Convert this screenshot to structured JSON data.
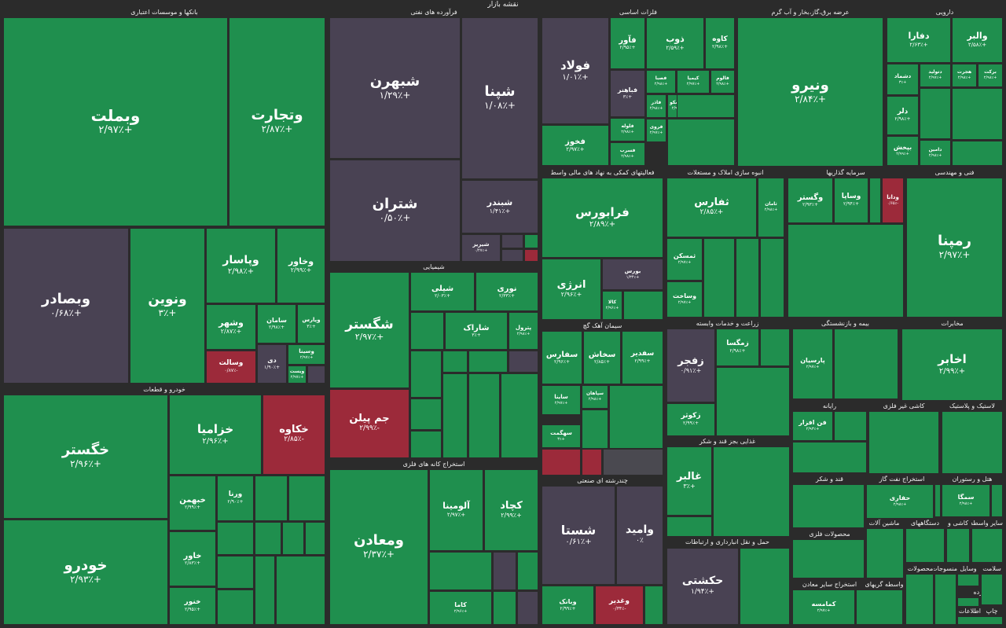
{
  "header_title": "نقشه بازار",
  "colors": {
    "up": "#1f8f4e",
    "neutral": "#494253",
    "down": "#9c2a3a",
    "gray": "#4a4950",
    "bg": "#2b2b2b"
  },
  "sectors": [
    "بانکها و موسسات اعتباری",
    "فرآورده های نفتی",
    "فلزات اساسی",
    "عرضه برق،گاز،بخار و آب گرم",
    "دارویی",
    "شیمیایی",
    "خودرو و قطعات",
    "فعالیتهای کمکی به نهاد های مالی واسط",
    "انبوه سازی املاک و مستغلات",
    "سرمایه گذاریها",
    "فنی و مهندسی",
    "سیمان آهک گچ",
    "زراعت و خدمات وابسته",
    "بیمه و بازنشستگی",
    "مخابرات",
    "رایانه",
    "کاشی غیر فلزی",
    "لاستیک و پلاستیک",
    "استخراج کانه های فلزی",
    "غذایی بجز قند و شکر",
    "چندرشته ای صنعتی",
    "قند و شکر",
    "استخراج نفت گاز",
    "هتل و رستوران",
    "حمل و نقل انبارداری و ارتباطات",
    "محصولات فلزی",
    "ماشین آلات",
    "دستگاههای",
    "کاشی و",
    "سایر واسطه",
    "استخراج سایر معادن",
    "واسطه گریهای",
    "محصولات",
    "منسوجات",
    "وسایل",
    "سلامت",
    "خرده",
    "چاپ",
    "اطلاعات و"
  ],
  "tiles": [
    {
      "symbol": "وبملت",
      "change": "+۲/۹۷٪",
      "status": "up"
    },
    {
      "symbol": "وتجارت",
      "change": "+۲/۸۷٪",
      "status": "up"
    },
    {
      "symbol": "وبصادر",
      "change": "+۰/۶۸٪",
      "status": "neutral"
    },
    {
      "symbol": "ونوین",
      "change": "+۳٪",
      "status": "up"
    },
    {
      "symbol": "وپاسار",
      "change": "+۲/۹۸٪",
      "status": "up"
    },
    {
      "symbol": "وخاور",
      "change": "+۲/۹۹٪",
      "status": "up"
    },
    {
      "symbol": "وشهر",
      "change": "+۲/۸۷٪",
      "status": "up"
    },
    {
      "symbol": "سامان",
      "change": "+۲/۹۸٪",
      "status": "up"
    },
    {
      "symbol": "وپارس",
      "change": "+۳٪",
      "status": "up"
    },
    {
      "symbol": "وسالت",
      "change": "-۰/۸۷٪",
      "status": "down"
    },
    {
      "symbol": "دی",
      "change": "+۱/۹۰٪",
      "status": "neutral"
    },
    {
      "symbol": "وسینا",
      "change": "+۲/۹۷٪",
      "status": "up"
    },
    {
      "symbol": "ویست",
      "change": "+۲/۹۷٪",
      "status": "up"
    },
    {
      "symbol": "شبهرن",
      "change": "+۱/۲۹٪",
      "status": "neutral"
    },
    {
      "symbol": "شپنا",
      "change": "+۱/۰۸٪",
      "status": "neutral"
    },
    {
      "symbol": "شتران",
      "change": "+۰/۵۰٪",
      "status": "neutral"
    },
    {
      "symbol": "شبندر",
      "change": "+۱/۴۱٪",
      "status": "neutral"
    },
    {
      "symbol": "شیریز",
      "change": "+۰/۴۷٪",
      "status": "neutral"
    },
    {
      "symbol": "فولاد",
      "change": "+۱/۰۱٪",
      "status": "neutral"
    },
    {
      "symbol": "فخوز",
      "change": "+۲/۹۷٪",
      "status": "up"
    },
    {
      "symbol": "فآور",
      "change": "+۲/۹۵٪",
      "status": "up"
    },
    {
      "symbol": "ذوب",
      "change": "+۲/۵۹٪",
      "status": "up"
    },
    {
      "symbol": "کاوه",
      "change": "+۲/۹۸٪",
      "status": "up"
    },
    {
      "symbol": "فباهنر",
      "change": "+۳٪",
      "status": "neutral"
    },
    {
      "symbol": "فصبا",
      "change": "+۲/۹۸٪",
      "status": "up"
    },
    {
      "symbol": "کیمیا",
      "change": "+۲/۹۷٪",
      "status": "up"
    },
    {
      "symbol": "فالوم",
      "change": "+۲/۹۸٪",
      "status": "up"
    },
    {
      "symbol": "فاذر",
      "change": "+۲/۹۸٪",
      "status": "up"
    },
    {
      "symbol": "سیسکو",
      "change": "+۲/۹۷٪",
      "status": "up"
    },
    {
      "symbol": "فلوله",
      "change": "+۲/۹۸٪",
      "status": "up"
    },
    {
      "symbol": "فروی",
      "change": "+۲/۹۷٪",
      "status": "up"
    },
    {
      "symbol": "فسرب",
      "change": "+۲/۹۸٪",
      "status": "up"
    },
    {
      "symbol": "ونیرو",
      "change": "+۲/۸۴٪",
      "status": "up"
    },
    {
      "symbol": "دفارا",
      "change": "+۲/۶۳٪",
      "status": "up"
    },
    {
      "symbol": "والبر",
      "change": "+۲/۵۸٪",
      "status": "up"
    },
    {
      "symbol": "دتولید",
      "change": "+۲/۹۷٪",
      "status": "up"
    },
    {
      "symbol": "برکت",
      "change": "+۲/۹۸٪",
      "status": "up"
    },
    {
      "symbol": "دشماد",
      "change": "+۳٪",
      "status": "up"
    },
    {
      "symbol": "هجرت",
      "change": "+۲/۹۸٪",
      "status": "up"
    },
    {
      "symbol": "دلر",
      "change": "+۲/۹۸٪",
      "status": "up"
    },
    {
      "symbol": "بپخش",
      "change": "+۲/۹۹٪",
      "status": "up"
    },
    {
      "symbol": "دامین",
      "change": "+۲/۹۸٪",
      "status": "up"
    },
    {
      "symbol": "فرابورس",
      "change": "+۲/۸۹٪",
      "status": "up"
    },
    {
      "symbol": "انرژی",
      "change": "+۲/۹۶٪",
      "status": "up"
    },
    {
      "symbol": "بورس",
      "change": "+۱/۳۴٪",
      "status": "neutral"
    },
    {
      "symbol": "کالا",
      "change": "+۲/۹۶٪",
      "status": "up"
    },
    {
      "symbol": "ثفارس",
      "change": "+۲/۸۵٪",
      "status": "up"
    },
    {
      "symbol": "ثامان",
      "change": "+۲/۹۸٪",
      "status": "up"
    },
    {
      "symbol": "ثمسکن",
      "change": "+۲/۹۷٪",
      "status": "up"
    },
    {
      "symbol": "وساخت",
      "change": "+۲/۹۷٪",
      "status": "up"
    },
    {
      "symbol": "وگستر",
      "change": "+۲/۹۳٪",
      "status": "up"
    },
    {
      "symbol": "وساپا",
      "change": "+۲/۹۴٪",
      "status": "up"
    },
    {
      "symbol": "ودانا",
      "change": "-۰/۶۵٪",
      "status": "down"
    },
    {
      "symbol": "رمپنا",
      "change": "+۲/۹۷٪",
      "status": "up"
    },
    {
      "symbol": "خگستر",
      "change": "+۲/۹۶٪",
      "status": "up"
    },
    {
      "symbol": "خزامیا",
      "change": "+۲/۹۶٪",
      "status": "up"
    },
    {
      "symbol": "خکاوه",
      "change": "-۲/۸۵٪",
      "status": "down"
    },
    {
      "symbol": "خودرو",
      "change": "+۲/۹۳٪",
      "status": "up"
    },
    {
      "symbol": "خبهمن",
      "change": "+۲/۹۹٪",
      "status": "up"
    },
    {
      "symbol": "ورنا",
      "change": "+۲/۹۰٪",
      "status": "up"
    },
    {
      "symbol": "خاور",
      "change": "+۲/۸۳٪",
      "status": "up"
    },
    {
      "symbol": "خنور",
      "change": "+۲/۹۵٪",
      "status": "up"
    },
    {
      "symbol": "شگستر",
      "change": "+۲/۹۷٪",
      "status": "up"
    },
    {
      "symbol": "جم پیلن",
      "change": "-۲/۹۹٪",
      "status": "down"
    },
    {
      "symbol": "شیلی",
      "change": "+۲/۰۳٪",
      "status": "up"
    },
    {
      "symbol": "نوری",
      "change": "+۲/۳۳٪",
      "status": "up"
    },
    {
      "symbol": "شاراک",
      "change": "+۳٪",
      "status": "up"
    },
    {
      "symbol": "پترول",
      "change": "+۲/۹۸٪",
      "status": "up"
    },
    {
      "symbol": "ومعادن",
      "change": "+۲/۳۷٪",
      "status": "up"
    },
    {
      "symbol": "کچاد",
      "change": "+۲/۹۹٪",
      "status": "up"
    },
    {
      "symbol": "آلومینا",
      "change": "+۲/۹۷٪",
      "status": "up"
    },
    {
      "symbol": "کاما",
      "change": "+۲/۹۶٪",
      "status": "up"
    },
    {
      "symbol": "شستا",
      "change": "+۰/۶۱٪",
      "status": "neutral"
    },
    {
      "symbol": "وامید",
      "change": "۰٪",
      "status": "neutral"
    },
    {
      "symbol": "وغدیر",
      "change": "-۰/۳۴٪",
      "status": "down"
    },
    {
      "symbol": "وبانک",
      "change": "+۲/۹۹٪",
      "status": "up"
    },
    {
      "symbol": "سفارس",
      "change": "+۲/۹۶٪",
      "status": "up"
    },
    {
      "symbol": "سخاش",
      "change": "+۲/۸۵٪",
      "status": "up"
    },
    {
      "symbol": "سفدیر",
      "change": "+۲/۹۹٪",
      "status": "up"
    },
    {
      "symbol": "سهگمت",
      "change": "+۳٪",
      "status": "up"
    },
    {
      "symbol": "ساینا",
      "change": "+۲/۹۷٪",
      "status": "up"
    },
    {
      "symbol": "سپاهان",
      "change": "+۲/۹۸٪",
      "status": "up"
    },
    {
      "symbol": "زفجر",
      "change": "+۰/۹۱٪",
      "status": "neutral"
    },
    {
      "symbol": "زکوثر",
      "change": "+۲/۹۹٪",
      "status": "up"
    },
    {
      "symbol": "زمگسا",
      "change": "+۲/۹۸٪",
      "status": "up"
    },
    {
      "symbol": "غالبر",
      "change": "+۳٪",
      "status": "up"
    },
    {
      "symbol": "حکشتی",
      "change": "+۱/۹۴٪",
      "status": "neutral"
    },
    {
      "symbol": "اخابر",
      "change": "+۲/۹۹٪",
      "status": "up"
    },
    {
      "symbol": "پارسیان",
      "change": "+۲/۹۷٪",
      "status": "up"
    },
    {
      "symbol": "فن افزار",
      "change": "+۲/۹۳٪",
      "status": "up"
    },
    {
      "symbol": "حفاری",
      "change": "+۲/۹۸٪",
      "status": "up"
    },
    {
      "symbol": "سمگا",
      "change": "+۲/۹۸٪",
      "status": "up"
    },
    {
      "symbol": "کمامسه",
      "change": "+۲/۹۷٪",
      "status": "up"
    }
  ]
}
